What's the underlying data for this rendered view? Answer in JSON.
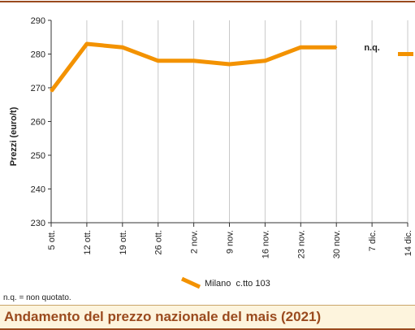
{
  "chart_data": {
    "type": "line",
    "title": "Andamento del prezzo nazionale del mais (2021)",
    "ylabel": "Prezzi (euro/t)",
    "xlabel": "",
    "ylim": [
      230,
      290
    ],
    "yticks": [
      "230",
      "240",
      "250",
      "260",
      "270",
      "280",
      "290"
    ],
    "categories": [
      "5 ott.",
      "12 ott.",
      "19 ott.",
      "26 ott.",
      "2 nov.",
      "9 nov.",
      "16 nov.",
      "23 nov.",
      "30 nov.",
      "7 dic.",
      "14 dic."
    ],
    "series": [
      {
        "name": "Milano  c.tto 103",
        "color": "#f39200",
        "values": [
          269,
          283,
          282,
          278,
          278,
          277,
          278,
          282,
          282,
          null,
          280
        ]
      }
    ],
    "annotation": "n.q.",
    "annotation_category": "7 dic.",
    "grid": "vertical",
    "legend_position": "bottom-center"
  },
  "footnote": "n.q. = non quotato.",
  "header": {
    "title": "Andamento del prezzo nazionale del mais (2021)"
  }
}
